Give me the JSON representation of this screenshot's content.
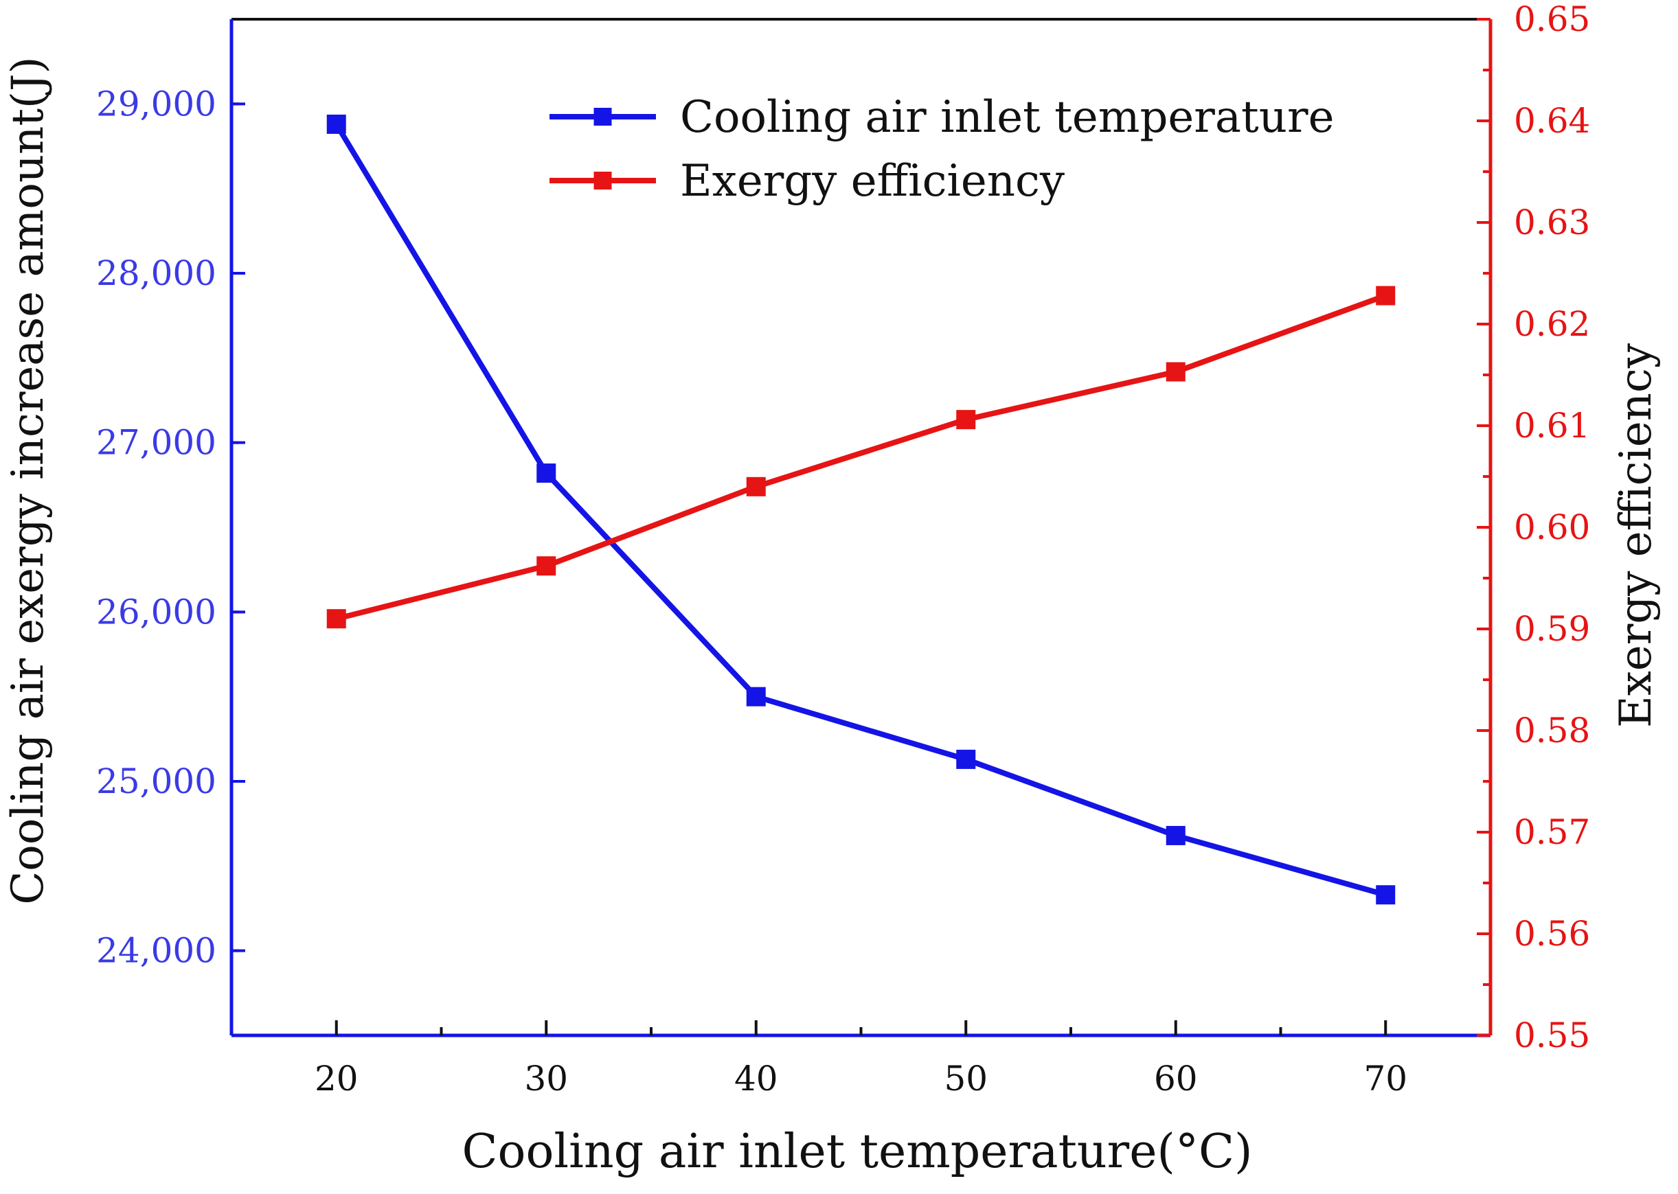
{
  "chart_data": {
    "type": "line",
    "title": "",
    "xlabel": "Cooling air inlet temperature(°C)",
    "ylabel_left": "Cooling air exergy increase amount(J)",
    "ylabel_right": "Exergy efficiency",
    "x": [
      20,
      30,
      40,
      50,
      60,
      70
    ],
    "x_tick_labels": [
      "20",
      "30",
      "40",
      "50",
      "60",
      "70"
    ],
    "xlim": [
      15,
      75
    ],
    "y_left_lim": [
      23500,
      29500
    ],
    "y_left_ticks": [
      24000,
      25000,
      26000,
      27000,
      28000,
      29000
    ],
    "y_left_tick_labels": [
      "24,000",
      "25,000",
      "26,000",
      "27,000",
      "28,000",
      "29,000"
    ],
    "y_right_lim": [
      0.55,
      0.65
    ],
    "y_right_ticks": [
      0.55,
      0.56,
      0.57,
      0.58,
      0.59,
      0.6,
      0.61,
      0.62,
      0.63,
      0.64,
      0.65
    ],
    "y_right_tick_labels": [
      "0.55",
      "0.56",
      "0.57",
      "0.58",
      "0.59",
      "0.60",
      "0.61",
      "0.62",
      "0.63",
      "0.64",
      "0.65"
    ],
    "grid": false,
    "legend_position": "top-center",
    "series": [
      {
        "name": "Cooling air inlet temperature",
        "axis": "left",
        "color": "#1414e6",
        "values": [
          28880,
          26820,
          25500,
          25130,
          24680,
          24330
        ]
      },
      {
        "name": "Exergy efficiency",
        "axis": "right",
        "color": "#e61414",
        "values": [
          0.591,
          0.5962,
          0.604,
          0.6106,
          0.6153,
          0.6228
        ]
      }
    ],
    "colors": {
      "left_axis": "#1414e6",
      "right_axis": "#e61414",
      "x_axis": "#111111",
      "left_tick_text": "#3a3ae6",
      "right_tick_text": "#e61414",
      "label_text": "#111111"
    }
  }
}
